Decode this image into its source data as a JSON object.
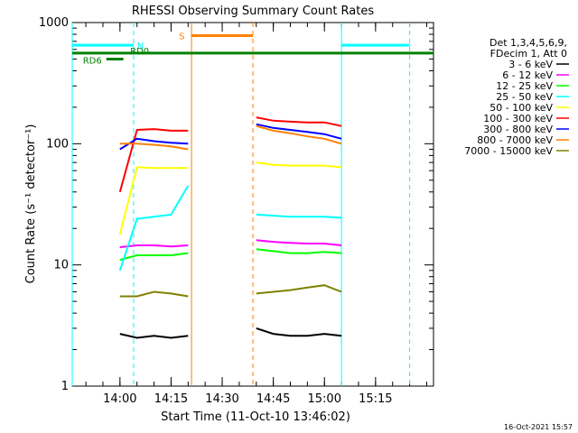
{
  "chart_data": {
    "type": "line",
    "title": "RHESSI Observing Summary Count Rates",
    "xlabel": "Start Time (11-Oct-10 13:46:02)",
    "ylabel": "Count Rate (s⁻¹ detector⁻¹)",
    "yscale": "log",
    "ylim": [
      1,
      1000
    ],
    "xlim": [
      "13:46",
      "15:32"
    ],
    "x_ticks": [
      "14:00",
      "14:15",
      "14:30",
      "14:45",
      "15:00",
      "15:15"
    ],
    "y_ticks": [
      "1",
      "10",
      "100",
      "1000"
    ],
    "legend_header": [
      "Det 1,3,4,5,6,9,",
      "FDecim 1, Att 0"
    ],
    "legend_position": "right",
    "series": [
      {
        "name": "3 - 6 keV",
        "color": "#000000",
        "x": [
          "14:00",
          "14:05",
          "14:10",
          "14:15",
          "14:20",
          "14:40",
          "14:45",
          "14:50",
          "14:55",
          "15:00",
          "15:05"
        ],
        "values": [
          2.7,
          2.5,
          2.6,
          2.5,
          2.6,
          3.0,
          2.7,
          2.6,
          2.6,
          2.7,
          2.6
        ]
      },
      {
        "name": "6 - 12 keV",
        "color": "#ff00ff",
        "x": [
          "14:00",
          "14:05",
          "14:10",
          "14:15",
          "14:20",
          "14:40",
          "14:45",
          "14:50",
          "14:55",
          "15:00",
          "15:05"
        ],
        "values": [
          14,
          14.5,
          14.5,
          14.2,
          14.5,
          16,
          15.5,
          15.2,
          15,
          15,
          14.5
        ]
      },
      {
        "name": "12 - 25 keV",
        "color": "#00ff00",
        "x": [
          "14:00",
          "14:05",
          "14:10",
          "14:15",
          "14:20",
          "14:40",
          "14:45",
          "14:50",
          "14:55",
          "15:00",
          "15:05"
        ],
        "values": [
          11,
          12,
          12,
          12,
          12.5,
          13.5,
          13,
          12.5,
          12.5,
          12.8,
          12.5
        ]
      },
      {
        "name": "25 - 50 keV",
        "color": "#00ffff",
        "x": [
          "14:00",
          "14:05",
          "14:10",
          "14:15",
          "14:20",
          "14:40",
          "14:45",
          "14:50",
          "14:55",
          "15:00",
          "15:05"
        ],
        "values": [
          9,
          24,
          25,
          26,
          45,
          26,
          25.5,
          25,
          25,
          25,
          24.5
        ]
      },
      {
        "name": "50 - 100 keV",
        "color": "#ffff00",
        "x": [
          "14:00",
          "14:05",
          "14:10",
          "14:15",
          "14:20",
          "14:40",
          "14:45",
          "14:50",
          "14:55",
          "15:00",
          "15:05"
        ],
        "values": [
          18,
          64,
          63,
          63,
          63,
          70,
          67,
          66,
          66,
          66,
          64
        ]
      },
      {
        "name": "100 - 300 keV",
        "color": "#ff0000",
        "x": [
          "14:00",
          "14:05",
          "14:10",
          "14:15",
          "14:20",
          "14:40",
          "14:45",
          "14:50",
          "14:55",
          "15:00",
          "15:05"
        ],
        "values": [
          40,
          130,
          132,
          128,
          128,
          165,
          155,
          152,
          150,
          150,
          140
        ]
      },
      {
        "name": "300 - 800 keV",
        "color": "#0000ff",
        "x": [
          "14:00",
          "14:05",
          "14:10",
          "14:15",
          "14:20",
          "14:40",
          "14:45",
          "14:50",
          "14:55",
          "15:00",
          "15:05"
        ],
        "values": [
          90,
          110,
          105,
          102,
          100,
          145,
          135,
          130,
          125,
          120,
          110
        ]
      },
      {
        "name": "800 - 7000 keV",
        "color": "#ff8000",
        "x": [
          "14:00",
          "14:05",
          "14:10",
          "14:15",
          "14:20",
          "14:40",
          "14:45",
          "14:50",
          "14:55",
          "15:00",
          "15:05"
        ],
        "values": [
          100,
          100,
          98,
          95,
          90,
          140,
          128,
          122,
          115,
          110,
          100
        ]
      },
      {
        "name": "7000 - 15000 keV",
        "color": "#808000",
        "x": [
          "14:00",
          "14:05",
          "14:10",
          "14:15",
          "14:20",
          "14:40",
          "14:45",
          "14:50",
          "14:55",
          "15:00",
          "15:05"
        ],
        "values": [
          5.5,
          5.5,
          6.0,
          5.8,
          5.5,
          5.8,
          6.0,
          6.2,
          6.5,
          6.8,
          6.0
        ]
      }
    ],
    "markers": [
      {
        "label": "N",
        "color": "#00ffff",
        "y": 650,
        "segments": [
          [
            "13:46",
            "14:04"
          ],
          [
            "15:05",
            "15:25"
          ]
        ],
        "dashed_lines": [
          "14:04",
          "15:25"
        ],
        "solid_lines": [
          "13:46",
          "15:05"
        ]
      },
      {
        "label": "S",
        "color": "#ff8000",
        "y": 780,
        "segments": [
          [
            "14:21",
            "14:39"
          ]
        ],
        "dashed_lines": [
          "14:39"
        ],
        "solid_lines": [
          "14:21"
        ]
      },
      {
        "label": "RD0",
        "color": "#008000",
        "y": 560,
        "segments": [
          [
            "13:46",
            "15:32"
          ]
        ]
      },
      {
        "label": "RD6",
        "color": "#008000",
        "y": 500,
        "segments": [
          [
            "13:56",
            "14:01"
          ]
        ]
      }
    ]
  },
  "footer": "16-Oct-2021 15:57"
}
